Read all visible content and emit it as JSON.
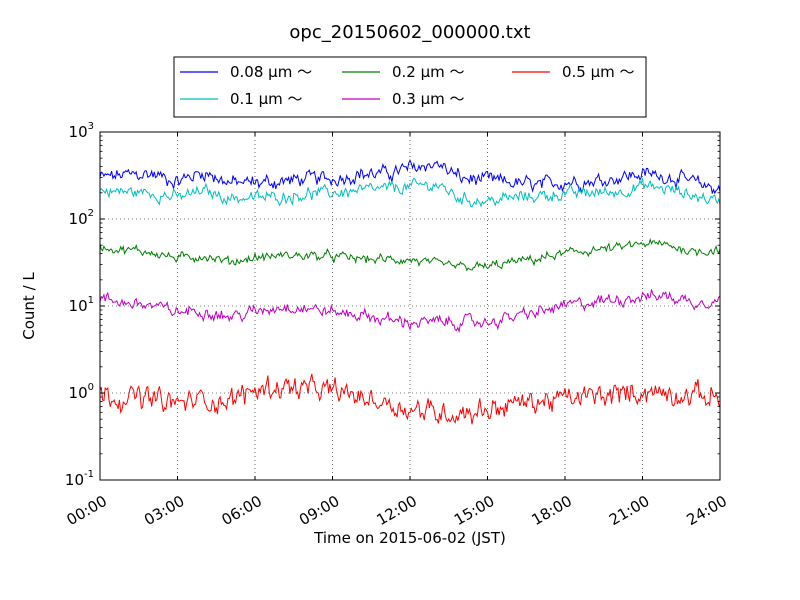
{
  "chart_data": {
    "type": "line",
    "title": "opc_20150602_000000.txt",
    "xlabel": "Time on 2015-06-02 (JST)",
    "ylabel": "Count / L",
    "x_range": [
      "00:00",
      "24:00"
    ],
    "x_ticks": [
      "00:00",
      "03:00",
      "06:00",
      "09:00",
      "12:00",
      "15:00",
      "18:00",
      "21:00",
      "24:00"
    ],
    "y_scale": "log",
    "ylim": [
      0.1,
      1000
    ],
    "y_ticks": [
      {
        "base": "10",
        "exp": "-1"
      },
      {
        "base": "10",
        "exp": "0"
      },
      {
        "base": "10",
        "exp": "1"
      },
      {
        "base": "10",
        "exp": "2"
      },
      {
        "base": "10",
        "exp": "3"
      }
    ],
    "grid": true,
    "legend_position": "above plot, top-center",
    "x_hours": [
      0,
      1,
      2,
      3,
      4,
      5,
      6,
      7,
      8,
      9,
      10,
      11,
      12,
      13,
      14,
      15,
      16,
      17,
      18,
      19,
      20,
      21,
      22,
      23,
      24
    ],
    "series": [
      {
        "name": "0.08 μm ～",
        "color": "#0000ff",
        "values": [
          300,
          320,
          330,
          270,
          350,
          260,
          260,
          270,
          290,
          290,
          330,
          330,
          380,
          440,
          290,
          280,
          260,
          240,
          270,
          270,
          300,
          330,
          310,
          260,
          220
        ]
      },
      {
        "name": "0.1 μm ～",
        "color": "#00bfbf",
        "values": [
          210,
          205,
          200,
          175,
          210,
          175,
          175,
          180,
          195,
          200,
          210,
          220,
          235,
          250,
          170,
          160,
          175,
          185,
          195,
          200,
          205,
          240,
          220,
          185,
          160
        ]
      },
      {
        "name": "0.2 μm ～",
        "color": "#008000",
        "values": [
          48,
          44,
          42,
          35,
          38,
          32,
          36,
          38,
          38,
          37,
          35,
          34,
          34,
          30,
          28,
          28,
          32,
          35,
          40,
          44,
          46,
          52,
          50,
          42,
          45
        ]
      },
      {
        "name": "0.3 μm ～",
        "color": "#bf00bf",
        "values": [
          12,
          11,
          10,
          8.5,
          9,
          7.5,
          8.5,
          10,
          9.5,
          8.5,
          8,
          7,
          6.5,
          6.5,
          6.5,
          6.5,
          7.5,
          8.5,
          10,
          11,
          12,
          13,
          13,
          11,
          12
        ]
      },
      {
        "name": "0.5 μm ～",
        "color": "#ff0000",
        "values": [
          1.0,
          0.9,
          0.85,
          0.75,
          0.85,
          0.8,
          1.1,
          1.2,
          1.1,
          1.05,
          0.9,
          0.8,
          0.65,
          0.6,
          0.6,
          0.65,
          0.75,
          0.8,
          0.85,
          0.9,
          0.95,
          1.05,
          1.0,
          0.95,
          0.9
        ]
      }
    ]
  }
}
